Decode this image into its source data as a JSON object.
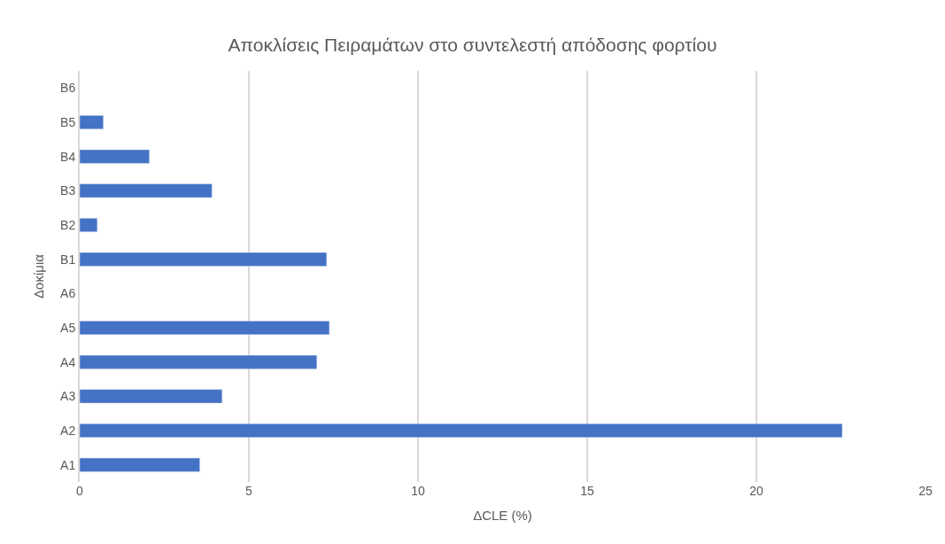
{
  "chart_data": {
    "type": "bar",
    "orientation": "horizontal",
    "title": "Αποκλίσεις Πειραμάτων στο συντελεστή απόδοσης φορτίου",
    "xlabel": "ΔCLE (%)",
    "ylabel": "Δοκίμια",
    "categories": [
      "B6",
      "B5",
      "B4",
      "B3",
      "B2",
      "B1",
      "A6",
      "A5",
      "A4",
      "A3",
      "A2",
      "A1"
    ],
    "values": [
      null,
      0.7,
      2.06,
      3.91,
      0.52,
      7.3,
      null,
      7.38,
      7.01,
      4.21,
      22.54,
      3.55
    ],
    "color": "#4472c4",
    "xlim": [
      0,
      25
    ],
    "xticks": [
      0,
      5,
      10,
      15,
      20,
      25
    ],
    "grid": "x"
  }
}
